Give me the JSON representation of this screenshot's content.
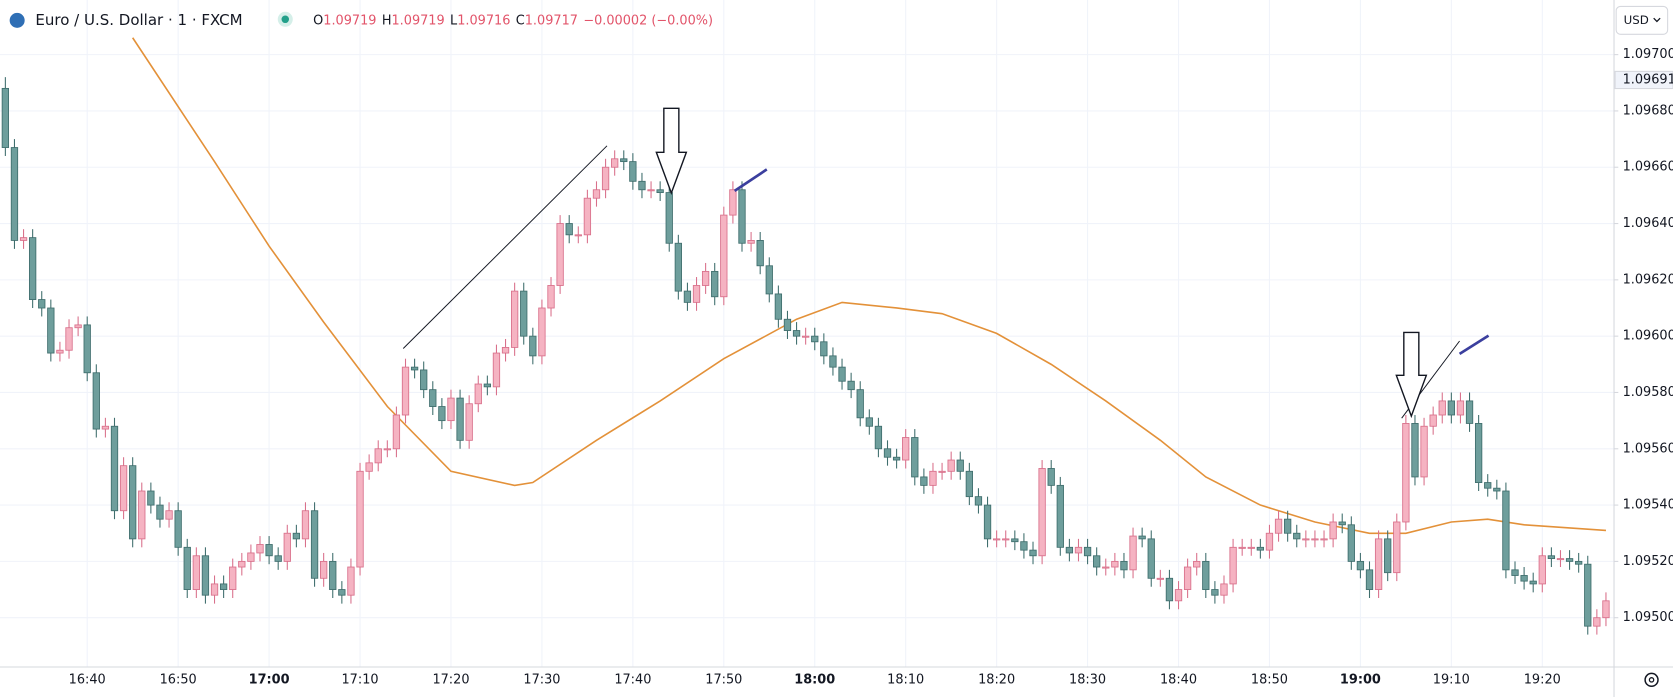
{
  "header": {
    "symbol": "Euro / U.S. Dollar · 1 · FXCM",
    "ohlc": [
      {
        "label": "O",
        "value": "1.09719"
      },
      {
        "label": "H",
        "value": "1.09719"
      },
      {
        "label": "L",
        "value": "1.09716"
      },
      {
        "label": "C",
        "value": "1.09717"
      }
    ],
    "change": "−0.00002 (−0.00%)",
    "currency": "USD"
  },
  "chart_data": {
    "type": "candlestick",
    "up_color": "#f5b3c2",
    "up_edge": "#d9708b",
    "down_color": "#6e9e9c",
    "down_edge": "#3f6e6d",
    "ylim": [
      1.094825,
      1.097194
    ],
    "yticks": [
      {
        "value": 1.095,
        "label": "1.09500"
      },
      {
        "value": 1.0952,
        "label": "1.09520"
      },
      {
        "value": 1.0954,
        "label": "1.09540"
      },
      {
        "value": 1.0956,
        "label": "1.09560"
      },
      {
        "value": 1.0958,
        "label": "1.09580"
      },
      {
        "value": 1.096,
        "label": "1.09600"
      },
      {
        "value": 1.0962,
        "label": "1.09620"
      },
      {
        "value": 1.0964,
        "label": "1.09640"
      },
      {
        "value": 1.0966,
        "label": "1.09660"
      },
      {
        "value": 1.0968,
        "label": "1.09680"
      },
      {
        "value": 1.097,
        "label": "1.09700"
      }
    ],
    "grid": true,
    "price_label": {
      "value": 1.09691,
      "label": "1.09691"
    },
    "categories": [
      null,
      null,
      null,
      null,
      null,
      null,
      null,
      null,
      null,
      "16:40",
      null,
      null,
      null,
      null,
      null,
      null,
      null,
      null,
      null,
      "16:50",
      null,
      null,
      null,
      null,
      null,
      null,
      null,
      null,
      null,
      "17:00",
      null,
      null,
      null,
      null,
      null,
      null,
      null,
      null,
      null,
      "17:10",
      null,
      null,
      null,
      null,
      null,
      null,
      null,
      null,
      null,
      "17:20",
      null,
      null,
      null,
      null,
      null,
      null,
      null,
      null,
      null,
      "17:30",
      null,
      null,
      null,
      null,
      null,
      null,
      null,
      null,
      null,
      "17:40",
      null,
      null,
      null,
      null,
      null,
      null,
      null,
      null,
      null,
      "17:50",
      null,
      null,
      null,
      null,
      null,
      null,
      null,
      null,
      null,
      "18:00",
      null,
      null,
      null,
      null,
      null,
      null,
      null,
      null,
      null,
      "18:10",
      null,
      null,
      null,
      null,
      null,
      null,
      null,
      null,
      null,
      "18:20",
      null,
      null,
      null,
      null,
      null,
      null,
      null,
      null,
      null,
      "18:30",
      null,
      null,
      null,
      null,
      null,
      null,
      null,
      null,
      null,
      "18:40",
      null,
      null,
      null,
      null,
      null,
      null,
      null,
      null,
      null,
      "18:50",
      null,
      null,
      null,
      null,
      null,
      null,
      null,
      null,
      null,
      "19:00",
      null,
      null,
      null,
      null,
      null,
      null,
      null,
      null,
      null,
      "19:10",
      null,
      null,
      null,
      null,
      null,
      null,
      null,
      null,
      null,
      "19:20",
      null,
      null,
      null,
      null,
      null,
      null,
      null
    ],
    "candles": [
      [
        1.09688,
        1.09692,
        1.09664,
        1.09667
      ],
      [
        1.09667,
        1.0967,
        1.09631,
        1.09634
      ],
      [
        1.09634,
        1.09638,
        1.09631,
        1.09635
      ],
      [
        1.09635,
        1.09638,
        1.0961,
        1.09613
      ],
      [
        1.09613,
        1.09616,
        1.09607,
        1.0961
      ],
      [
        1.0961,
        1.09613,
        1.09591,
        1.09594
      ],
      [
        1.09594,
        1.09598,
        1.09591,
        1.09595
      ],
      [
        1.09595,
        1.09606,
        1.09592,
        1.09603
      ],
      [
        1.09603,
        1.09607,
        1.096,
        1.09604
      ],
      [
        1.09604,
        1.09607,
        1.09584,
        1.09587
      ],
      [
        1.09587,
        1.0959,
        1.09564,
        1.09567
      ],
      [
        1.09567,
        1.09571,
        1.09564,
        1.09568
      ],
      [
        1.09568,
        1.09571,
        1.09535,
        1.09538
      ],
      [
        1.09538,
        1.09557,
        1.09535,
        1.09554
      ],
      [
        1.09554,
        1.09557,
        1.09525,
        1.09528
      ],
      [
        1.09528,
        1.09548,
        1.09525,
        1.09545
      ],
      [
        1.09545,
        1.09548,
        1.09537,
        1.0954
      ],
      [
        1.0954,
        1.09543,
        1.09532,
        1.09535
      ],
      [
        1.09535,
        1.09541,
        1.09532,
        1.09538
      ],
      [
        1.09538,
        1.09541,
        1.09522,
        1.09525
      ],
      [
        1.09525,
        1.09528,
        1.09507,
        1.0951
      ],
      [
        1.0951,
        1.09525,
        1.09507,
        1.09522
      ],
      [
        1.09522,
        1.09525,
        1.09505,
        1.09508
      ],
      [
        1.09508,
        1.09515,
        1.09505,
        1.09512
      ],
      [
        1.09512,
        1.09515,
        1.09507,
        1.0951
      ],
      [
        1.0951,
        1.09521,
        1.09507,
        1.09518
      ],
      [
        1.09518,
        1.09523,
        1.09515,
        1.0952
      ],
      [
        1.0952,
        1.09526,
        1.09517,
        1.09523
      ],
      [
        1.09523,
        1.09529,
        1.0952,
        1.09526
      ],
      [
        1.09526,
        1.09529,
        1.09519,
        1.09522
      ],
      [
        1.09522,
        1.09525,
        1.09517,
        1.0952
      ],
      [
        1.0952,
        1.09533,
        1.09517,
        1.0953
      ],
      [
        1.0953,
        1.09533,
        1.09525,
        1.09528
      ],
      [
        1.09528,
        1.09541,
        1.09525,
        1.09538
      ],
      [
        1.09538,
        1.09541,
        1.09511,
        1.09514
      ],
      [
        1.09514,
        1.09523,
        1.09511,
        1.0952
      ],
      [
        1.0952,
        1.09523,
        1.09507,
        1.0951
      ],
      [
        1.0951,
        1.09513,
        1.09505,
        1.09508
      ],
      [
        1.09508,
        1.09521,
        1.09505,
        1.09518
      ],
      [
        1.09518,
        1.09555,
        1.09515,
        1.09552
      ],
      [
        1.09552,
        1.09558,
        1.09549,
        1.09555
      ],
      [
        1.09555,
        1.09563,
        1.09552,
        1.0956
      ],
      [
        1.0956,
        1.09563,
        1.09557,
        1.0956
      ],
      [
        1.0956,
        1.09575,
        1.09557,
        1.09572
      ],
      [
        1.09572,
        1.09592,
        1.09569,
        1.09589
      ],
      [
        1.09589,
        1.09592,
        1.09585,
        1.09588
      ],
      [
        1.09588,
        1.09591,
        1.09578,
        1.09581
      ],
      [
        1.09581,
        1.09584,
        1.09572,
        1.09575
      ],
      [
        1.09575,
        1.09578,
        1.09567,
        1.0957
      ],
      [
        1.0957,
        1.09581,
        1.09567,
        1.09578
      ],
      [
        1.09578,
        1.09581,
        1.0956,
        1.09563
      ],
      [
        1.09563,
        1.09579,
        1.0956,
        1.09576
      ],
      [
        1.09576,
        1.09586,
        1.09573,
        1.09583
      ],
      [
        1.09583,
        1.09586,
        1.09579,
        1.09582
      ],
      [
        1.09582,
        1.09597,
        1.09579,
        1.09594
      ],
      [
        1.09594,
        1.09599,
        1.09591,
        1.09596
      ],
      [
        1.09596,
        1.09619,
        1.09593,
        1.09616
      ],
      [
        1.09616,
        1.09619,
        1.09597,
        1.096
      ],
      [
        1.096,
        1.09603,
        1.0959,
        1.09593
      ],
      [
        1.09593,
        1.09613,
        1.0959,
        1.0961
      ],
      [
        1.0961,
        1.09621,
        1.09607,
        1.09618
      ],
      [
        1.09618,
        1.09643,
        1.09615,
        1.0964
      ],
      [
        1.0964,
        1.09643,
        1.09633,
        1.09636
      ],
      [
        1.09636,
        1.09639,
        1.09633,
        1.09636
      ],
      [
        1.09636,
        1.09652,
        1.09633,
        1.09649
      ],
      [
        1.09649,
        1.09655,
        1.09646,
        1.09652
      ],
      [
        1.09652,
        1.09663,
        1.09649,
        1.0966
      ],
      [
        1.0966,
        1.09666,
        1.09657,
        1.09663
      ],
      [
        1.09663,
        1.09666,
        1.09659,
        1.09662
      ],
      [
        1.09662,
        1.09665,
        1.09652,
        1.09655
      ],
      [
        1.09655,
        1.09658,
        1.09649,
        1.09652
      ],
      [
        1.09652,
        1.09655,
        1.09649,
        1.09652
      ],
      [
        1.09652,
        1.09655,
        1.09648,
        1.09651
      ],
      [
        1.09651,
        1.09654,
        1.0963,
        1.09633
      ],
      [
        1.09633,
        1.09636,
        1.09613,
        1.09616
      ],
      [
        1.09616,
        1.09619,
        1.09609,
        1.09612
      ],
      [
        1.09612,
        1.09621,
        1.09609,
        1.09618
      ],
      [
        1.09618,
        1.09626,
        1.09615,
        1.09623
      ],
      [
        1.09623,
        1.09626,
        1.09611,
        1.09614
      ],
      [
        1.09614,
        1.09646,
        1.09611,
        1.09643
      ],
      [
        1.09643,
        1.09655,
        1.0964,
        1.09652
      ],
      [
        1.09652,
        1.09655,
        1.0963,
        1.09633
      ],
      [
        1.09633,
        1.09637,
        1.0963,
        1.09634
      ],
      [
        1.09634,
        1.09637,
        1.09622,
        1.09625
      ],
      [
        1.09625,
        1.09628,
        1.09612,
        1.09615
      ],
      [
        1.09615,
        1.09618,
        1.09603,
        1.09606
      ],
      [
        1.09606,
        1.09609,
        1.09599,
        1.09602
      ],
      [
        1.09602,
        1.09605,
        1.09597,
        1.096
      ],
      [
        1.096,
        1.09603,
        1.09597,
        1.096
      ],
      [
        1.096,
        1.09603,
        1.09595,
        1.09598
      ],
      [
        1.09598,
        1.09601,
        1.0959,
        1.09593
      ],
      [
        1.09593,
        1.09596,
        1.09586,
        1.09589
      ],
      [
        1.09589,
        1.09592,
        1.09581,
        1.09584
      ],
      [
        1.09584,
        1.09587,
        1.09578,
        1.09581
      ],
      [
        1.09581,
        1.09584,
        1.09568,
        1.09571
      ],
      [
        1.09571,
        1.09574,
        1.09565,
        1.09568
      ],
      [
        1.09568,
        1.09571,
        1.09557,
        1.0956
      ],
      [
        1.0956,
        1.09563,
        1.09554,
        1.09557
      ],
      [
        1.09557,
        1.0956,
        1.09553,
        1.09556
      ],
      [
        1.09556,
        1.09567,
        1.09553,
        1.09564
      ],
      [
        1.09564,
        1.09567,
        1.09547,
        1.0955
      ],
      [
        1.0955,
        1.09553,
        1.09544,
        1.09547
      ],
      [
        1.09547,
        1.09555,
        1.09544,
        1.09552
      ],
      [
        1.09552,
        1.09555,
        1.09549,
        1.09552
      ],
      [
        1.09552,
        1.09559,
        1.09549,
        1.09556
      ],
      [
        1.09556,
        1.09559,
        1.09549,
        1.09552
      ],
      [
        1.09552,
        1.09555,
        1.0954,
        1.09543
      ],
      [
        1.09543,
        1.09546,
        1.09537,
        1.0954
      ],
      [
        1.0954,
        1.09543,
        1.09525,
        1.09528
      ],
      [
        1.09528,
        1.09531,
        1.09525,
        1.09528
      ],
      [
        1.09528,
        1.09531,
        1.09525,
        1.09528
      ],
      [
        1.09528,
        1.09531,
        1.09524,
        1.09527
      ],
      [
        1.09527,
        1.0953,
        1.09521,
        1.09524
      ],
      [
        1.09524,
        1.09527,
        1.09519,
        1.09522
      ],
      [
        1.09522,
        1.09556,
        1.09519,
        1.09553
      ],
      [
        1.09553,
        1.09556,
        1.09544,
        1.09547
      ],
      [
        1.09547,
        1.0955,
        1.09522,
        1.09525
      ],
      [
        1.09525,
        1.09528,
        1.0952,
        1.09523
      ],
      [
        1.09523,
        1.09528,
        1.0952,
        1.09525
      ],
      [
        1.09525,
        1.09528,
        1.09519,
        1.09522
      ],
      [
        1.09522,
        1.09525,
        1.09515,
        1.09518
      ],
      [
        1.09518,
        1.09521,
        1.09515,
        1.09518
      ],
      [
        1.09518,
        1.09523,
        1.09515,
        1.0952
      ],
      [
        1.0952,
        1.09523,
        1.09514,
        1.09517
      ],
      [
        1.09517,
        1.09532,
        1.09514,
        1.09529
      ],
      [
        1.09529,
        1.09532,
        1.09525,
        1.09528
      ],
      [
        1.09528,
        1.09531,
        1.09511,
        1.09514
      ],
      [
        1.09514,
        1.09517,
        1.09511,
        1.09514
      ],
      [
        1.09514,
        1.09517,
        1.09503,
        1.09506
      ],
      [
        1.09506,
        1.09513,
        1.09503,
        1.0951
      ],
      [
        1.0951,
        1.09521,
        1.09507,
        1.09518
      ],
      [
        1.09518,
        1.09523,
        1.09515,
        1.0952
      ],
      [
        1.0952,
        1.09523,
        1.09507,
        1.0951
      ],
      [
        1.0951,
        1.09513,
        1.09505,
        1.09508
      ],
      [
        1.09508,
        1.09515,
        1.09505,
        1.09512
      ],
      [
        1.09512,
        1.09528,
        1.09509,
        1.09525
      ],
      [
        1.09525,
        1.09528,
        1.09522,
        1.09525
      ],
      [
        1.09525,
        1.09528,
        1.09522,
        1.09525
      ],
      [
        1.09525,
        1.09528,
        1.09521,
        1.09524
      ],
      [
        1.09524,
        1.09533,
        1.09521,
        1.0953
      ],
      [
        1.0953,
        1.09538,
        1.09527,
        1.09535
      ],
      [
        1.09535,
        1.09538,
        1.09527,
        1.0953
      ],
      [
        1.0953,
        1.09533,
        1.09525,
        1.09528
      ],
      [
        1.09528,
        1.09531,
        1.09525,
        1.09528
      ],
      [
        1.09528,
        1.09531,
        1.09525,
        1.09528
      ],
      [
        1.09528,
        1.09531,
        1.09525,
        1.09528
      ],
      [
        1.09528,
        1.09537,
        1.09525,
        1.09534
      ],
      [
        1.09534,
        1.09537,
        1.0953,
        1.09533
      ],
      [
        1.09533,
        1.09536,
        1.09517,
        1.0952
      ],
      [
        1.0952,
        1.09523,
        1.09514,
        1.09517
      ],
      [
        1.09517,
        1.0952,
        1.09507,
        1.0951
      ],
      [
        1.0951,
        1.09531,
        1.09507,
        1.09528
      ],
      [
        1.09528,
        1.09531,
        1.09513,
        1.09516
      ],
      [
        1.09516,
        1.09537,
        1.09513,
        1.09534
      ],
      [
        1.09534,
        1.09572,
        1.09531,
        1.09569
      ],
      [
        1.09569,
        1.09572,
        1.09547,
        1.0955
      ],
      [
        1.0955,
        1.09571,
        1.09547,
        1.09568
      ],
      [
        1.09568,
        1.09575,
        1.09565,
        1.09572
      ],
      [
        1.09572,
        1.0958,
        1.09569,
        1.09577
      ],
      [
        1.09577,
        1.0958,
        1.09569,
        1.09572
      ],
      [
        1.09572,
        1.0958,
        1.09569,
        1.09577
      ],
      [
        1.09577,
        1.0958,
        1.09566,
        1.09569
      ],
      [
        1.09569,
        1.09572,
        1.09545,
        1.09548
      ],
      [
        1.09548,
        1.09551,
        1.09543,
        1.09546
      ],
      [
        1.09546,
        1.09549,
        1.09542,
        1.09545
      ],
      [
        1.09545,
        1.09548,
        1.09514,
        1.09517
      ],
      [
        1.09517,
        1.0952,
        1.09512,
        1.09515
      ],
      [
        1.09515,
        1.09518,
        1.0951,
        1.09513
      ],
      [
        1.09513,
        1.09516,
        1.09509,
        1.09512
      ],
      [
        1.09512,
        1.09525,
        1.09509,
        1.09522
      ],
      [
        1.09522,
        1.09525,
        1.09518,
        1.09521
      ],
      [
        1.09521,
        1.09524,
        1.09518,
        1.09521
      ],
      [
        1.09521,
        1.09524,
        1.09517,
        1.0952
      ],
      [
        1.0952,
        1.09523,
        1.09516,
        1.09519
      ],
      [
        1.09519,
        1.09522,
        1.09494,
        1.09497
      ],
      [
        1.09497,
        1.09503,
        1.09494,
        1.095
      ],
      [
        1.095,
        1.09509,
        1.09497,
        1.09506
      ]
    ],
    "ma": {
      "color": "#e39139",
      "x": [
        14,
        23,
        29,
        35,
        42,
        49,
        56,
        58,
        65,
        72,
        79,
        87,
        92,
        98,
        103,
        109,
        115,
        121,
        127,
        132,
        138,
        144,
        150,
        154,
        159,
        163,
        167,
        176
      ],
      "values": [
        1.09706,
        1.09662,
        1.09632,
        1.09605,
        1.09575,
        1.09552,
        1.09547,
        1.09548,
        1.09563,
        1.09577,
        1.09592,
        1.09606,
        1.09612,
        1.0961,
        1.09608,
        1.09601,
        1.0959,
        1.09577,
        1.09563,
        1.0955,
        1.0954,
        1.09534,
        1.0953,
        1.0953,
        1.09534,
        1.09535,
        1.09533,
        1.09531
      ]
    }
  }
}
